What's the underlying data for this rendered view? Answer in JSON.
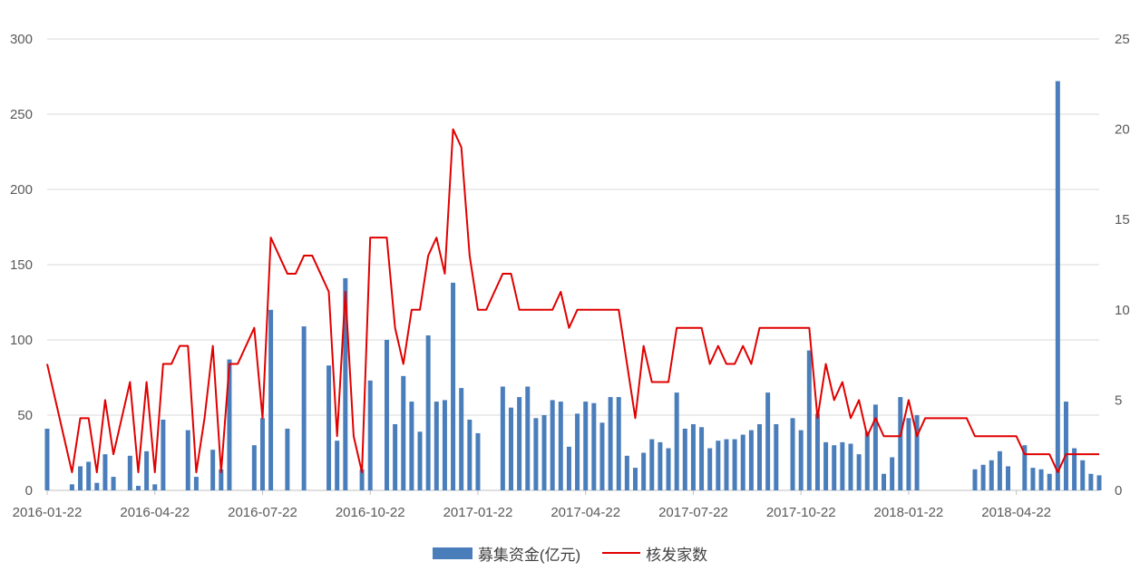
{
  "chart_data": {
    "type": "bar+line",
    "title": "",
    "xlabel": "",
    "ylabel": "",
    "y_left": {
      "ylim": [
        0,
        300
      ],
      "ticks": [
        0,
        50,
        100,
        150,
        200,
        250,
        300
      ]
    },
    "y_right": {
      "ylim": [
        0,
        25
      ],
      "ticks": [
        0,
        5,
        10,
        15,
        20,
        25
      ]
    },
    "x_ticks": [
      "2016-01-22",
      "2016-04-22",
      "2016-07-22",
      "2016-10-22",
      "2017-01-22",
      "2017-04-22",
      "2017-07-22",
      "2017-10-22",
      "2018-01-22",
      "2018-04-22"
    ],
    "grid": true,
    "legend_position": "bottom",
    "series": [
      {
        "name": "募集资金(亿元)",
        "type": "bar",
        "axis": "left",
        "color": "#4a7ebb",
        "values": [
          41,
          0,
          0,
          4,
          16,
          19,
          5,
          24,
          9,
          0,
          23,
          3,
          26,
          4,
          47,
          0,
          0,
          40,
          9,
          0,
          27,
          14,
          87,
          0,
          0,
          30,
          48,
          120,
          0,
          41,
          0,
          109,
          0,
          0,
          83,
          33,
          141,
          0,
          14,
          73,
          0,
          100,
          44,
          76,
          59,
          39,
          103,
          59,
          60,
          138,
          68,
          47,
          38,
          0,
          0,
          69,
          55,
          62,
          69,
          48,
          50,
          60,
          59,
          29,
          51,
          59,
          58,
          45,
          62,
          62,
          23,
          15,
          25,
          34,
          32,
          28,
          65,
          41,
          44,
          42,
          28,
          33,
          34,
          34,
          37,
          40,
          44,
          65,
          44,
          0,
          48,
          40,
          93,
          51,
          32,
          30,
          32,
          31,
          24,
          39,
          57,
          11,
          22,
          62,
          48,
          50,
          0,
          0,
          0,
          0,
          0,
          0,
          14,
          17,
          20,
          26,
          16,
          0,
          30,
          15,
          14,
          11,
          272,
          59,
          28,
          20,
          11,
          10
        ]
      },
      {
        "name": "核发家数",
        "type": "line",
        "axis": "right",
        "color": "#e00000",
        "values": [
          7,
          5,
          3,
          1,
          4,
          4,
          1,
          5,
          2,
          4,
          6,
          1,
          6,
          1,
          7,
          7,
          8,
          8,
          1,
          4,
          8,
          1,
          7,
          7,
          8,
          9,
          4,
          14,
          13,
          12,
          12,
          13,
          13,
          12,
          11,
          3,
          11,
          3,
          1,
          14,
          14,
          14,
          9,
          7,
          10,
          10,
          13,
          14,
          12,
          20,
          19,
          13,
          10,
          10,
          11,
          12,
          12,
          10,
          10,
          10,
          10,
          10,
          11,
          9,
          10,
          10,
          10,
          10,
          10,
          10,
          7,
          4,
          8,
          6,
          6,
          6,
          9,
          9,
          9,
          9,
          7,
          8,
          7,
          7,
          8,
          7,
          9,
          9,
          9,
          9,
          9,
          9,
          9,
          4,
          7,
          5,
          6,
          4,
          5,
          3,
          4,
          3,
          3,
          3,
          5,
          3,
          4,
          4,
          4,
          4,
          4,
          4,
          3,
          3,
          3,
          3,
          3,
          3,
          2,
          2,
          2,
          2,
          1,
          2,
          2,
          2,
          2,
          2
        ]
      }
    ]
  }
}
